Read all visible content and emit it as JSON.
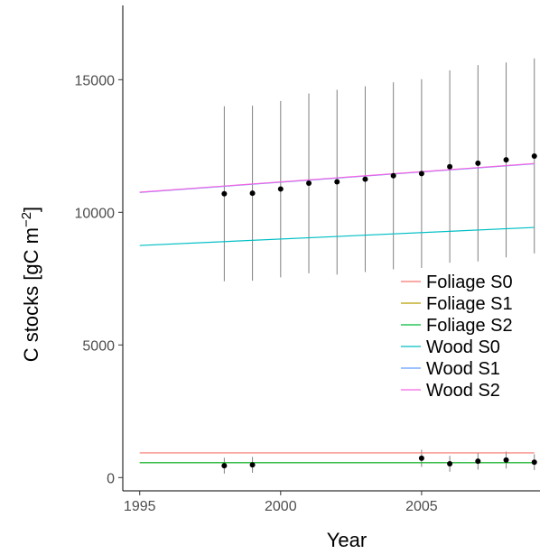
{
  "chart_data": {
    "type": "line",
    "xlabel": "Year",
    "ylabel": "C stocks [gC m",
    "ylabel_unit_superscript": "−2",
    "ylabel_close": "]",
    "xlim": [
      1994.4,
      2009.2
    ],
    "ylim": [
      -500,
      17800
    ],
    "x_ticks": [
      1995,
      2000,
      2005
    ],
    "y_ticks": [
      0,
      5000,
      10000,
      15000
    ],
    "grid": false,
    "legend_position": "right",
    "series": [
      {
        "name": "Foliage S0",
        "color": "#F8766D",
        "x": [
          1995,
          2009
        ],
        "y": [
          930,
          930
        ]
      },
      {
        "name": "Foliage S1",
        "color": "#B79F00",
        "x": [
          1995,
          2009
        ],
        "y": [
          560,
          560
        ]
      },
      {
        "name": "Foliage S2",
        "color": "#00BA38",
        "x": [
          1995,
          2009
        ],
        "y": [
          560,
          560
        ]
      },
      {
        "name": "Wood S0",
        "color": "#00BFC4",
        "x": [
          1995,
          2009
        ],
        "y": [
          8750,
          9430
        ]
      },
      {
        "name": "Wood S1",
        "color": "#619CFF",
        "x": [
          1995,
          2009
        ],
        "y": [
          10750,
          11830
        ]
      },
      {
        "name": "Wood S2",
        "color": "#F564E3",
        "x": [
          1995,
          2009
        ],
        "y": [
          10760,
          11840
        ]
      }
    ],
    "observations_wood": [
      {
        "x": 1998,
        "y": 10700,
        "lo": 7400,
        "hi": 14000
      },
      {
        "x": 1999,
        "y": 10720,
        "lo": 7420,
        "hi": 14020
      },
      {
        "x": 2000,
        "y": 10880,
        "lo": 7550,
        "hi": 14200
      },
      {
        "x": 2001,
        "y": 11100,
        "lo": 7700,
        "hi": 14480
      },
      {
        "x": 2002,
        "y": 11150,
        "lo": 7650,
        "hi": 14620
      },
      {
        "x": 2003,
        "y": 11250,
        "lo": 7750,
        "hi": 14750
      },
      {
        "x": 2004,
        "y": 11380,
        "lo": 7850,
        "hi": 14900
      },
      {
        "x": 2005,
        "y": 11460,
        "lo": 7900,
        "hi": 15020
      },
      {
        "x": 2006,
        "y": 11720,
        "lo": 8100,
        "hi": 15350
      },
      {
        "x": 2007,
        "y": 11850,
        "lo": 8150,
        "hi": 15550
      },
      {
        "x": 2008,
        "y": 11980,
        "lo": 8300,
        "hi": 15650
      },
      {
        "x": 2009,
        "y": 12120,
        "lo": 8450,
        "hi": 15800
      }
    ],
    "observations_foliage": [
      {
        "x": 1998,
        "y": 450,
        "lo": 150,
        "hi": 750
      },
      {
        "x": 1999,
        "y": 480,
        "lo": 180,
        "hi": 780
      },
      {
        "x": 2005,
        "y": 730,
        "lo": 400,
        "hi": 1050
      },
      {
        "x": 2006,
        "y": 520,
        "lo": 220,
        "hi": 820
      },
      {
        "x": 2007,
        "y": 620,
        "lo": 300,
        "hi": 940
      },
      {
        "x": 2008,
        "y": 660,
        "lo": 340,
        "hi": 980
      },
      {
        "x": 2009,
        "y": 580,
        "lo": 280,
        "hi": 880
      }
    ],
    "errorbar_color": "#808080",
    "point_color": "#000000"
  }
}
